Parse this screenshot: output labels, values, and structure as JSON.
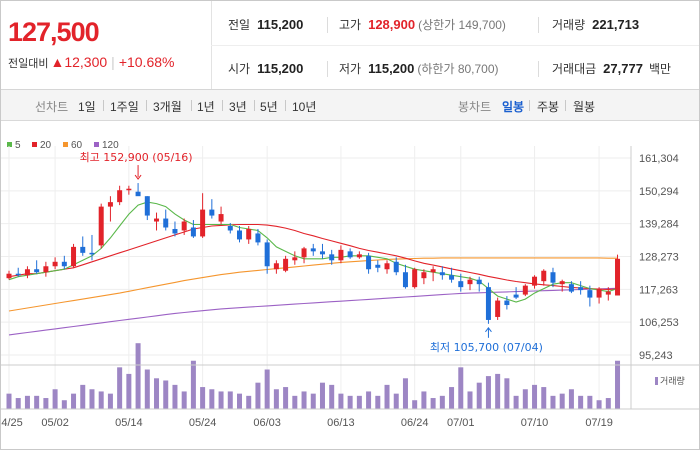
{
  "quote": {
    "price": "127,500",
    "change_label": "전일대비",
    "change": "▲12,300",
    "change_pct": "+10.68%",
    "prev_close": {
      "label": "전일",
      "value": "115,200"
    },
    "high": {
      "label": "고가",
      "value": "128,900",
      "extra": "(상한가 149,700)"
    },
    "volume": {
      "label": "거래량",
      "value": "221,713"
    },
    "open": {
      "label": "시가",
      "value": "115,200"
    },
    "low": {
      "label": "저가",
      "value": "115,200",
      "extra": "(하한가 80,700)"
    },
    "amount": {
      "label": "거래대금",
      "value": "27,777",
      "unit": "백만"
    }
  },
  "nav": {
    "line_chart_label": "선차트",
    "periods": [
      "1일",
      "1주일",
      "3개월",
      "1년",
      "3년",
      "5년",
      "10년"
    ],
    "candle_chart_label": "봉차트",
    "candle_periods": [
      "일봉",
      "주봉",
      "월봉"
    ],
    "selected_candle": "일봉"
  },
  "colors": {
    "up": "#e2232a",
    "down": "#1f6fd8",
    "ma5": "#5ab84a",
    "ma20": "#e2232a",
    "ma60": "#f5962e",
    "ma120": "#9c62c5",
    "volume": "#9d86c4"
  },
  "chart_data": {
    "type": "candlestick",
    "legend": [
      {
        "name": "5",
        "color": "#5ab84a"
      },
      {
        "name": "20",
        "color": "#e2232a"
      },
      {
        "name": "60",
        "color": "#f5962e"
      },
      {
        "name": "120",
        "color": "#9c62c5"
      }
    ],
    "y_ticks": [
      161304,
      150294,
      139284,
      128273,
      117263,
      106253,
      95243
    ],
    "y_tick_labels": [
      "161,304",
      "150,294",
      "139,284",
      "128,273",
      "117,263",
      "106,253",
      "95,243"
    ],
    "ylim": [
      95243,
      161304
    ],
    "x_tick_labels": [
      {
        "label": "04/25",
        "index": 0
      },
      {
        "label": "05/02",
        "index": 5
      },
      {
        "label": "05/14",
        "index": 13
      },
      {
        "label": "05/24",
        "index": 21
      },
      {
        "label": "06/03",
        "index": 28
      },
      {
        "label": "06/13",
        "index": 36
      },
      {
        "label": "06/24",
        "index": 44
      },
      {
        "label": "07/01",
        "index": 49
      },
      {
        "label": "07/10",
        "index": 57
      },
      {
        "label": "07/19",
        "index": 64
      }
    ],
    "annotations": [
      {
        "label": "최고 152,900 (05/16)",
        "index": 14,
        "value": 152900,
        "kind": "high"
      },
      {
        "label": "최저 105,700 (07/04)",
        "index": 52,
        "value": 105700,
        "kind": "low"
      }
    ],
    "volume_legend": "거래량",
    "candles": [
      [
        121000,
        123500,
        120500,
        122500
      ],
      [
        122500,
        124500,
        121500,
        122000
      ],
      [
        122000,
        125000,
        121000,
        124000
      ],
      [
        124000,
        127000,
        122500,
        123000
      ],
      [
        123000,
        126500,
        121500,
        125000
      ],
      [
        125000,
        128000,
        124000,
        126500
      ],
      [
        126500,
        128500,
        124000,
        125000
      ],
      [
        125000,
        132500,
        124500,
        131500
      ],
      [
        131500,
        135000,
        128500,
        129500
      ],
      [
        129500,
        135500,
        127000,
        129000
      ],
      [
        132000,
        146000,
        131000,
        145000
      ],
      [
        145000,
        148500,
        140000,
        146500
      ],
      [
        146500,
        152000,
        145500,
        150500
      ],
      [
        150500,
        152000,
        149000,
        151000
      ],
      [
        150000,
        152900,
        149000,
        148500
      ],
      [
        148500,
        148500,
        140500,
        142000
      ],
      [
        140000,
        143000,
        137000,
        141000
      ],
      [
        141000,
        144000,
        137000,
        138000
      ],
      [
        137500,
        140000,
        135000,
        136000
      ],
      [
        137000,
        141000,
        135500,
        140000
      ],
      [
        138000,
        140500,
        134500,
        135000
      ],
      [
        135000,
        149500,
        134500,
        144000
      ],
      [
        144000,
        147500,
        141000,
        142000
      ],
      [
        140000,
        145000,
        139000,
        142500
      ],
      [
        138500,
        139500,
        136000,
        137000
      ],
      [
        137000,
        138500,
        133000,
        134000
      ],
      [
        134000,
        138500,
        132500,
        137500
      ],
      [
        136000,
        137500,
        132000,
        133000
      ],
      [
        133000,
        134000,
        122500,
        125000
      ],
      [
        124000,
        127000,
        122500,
        126000
      ],
      [
        123500,
        128500,
        123000,
        127500
      ],
      [
        127000,
        130000,
        125500,
        128000
      ],
      [
        128000,
        131500,
        126000,
        131000
      ],
      [
        131000,
        132500,
        128500,
        130000
      ],
      [
        130000,
        132500,
        127500,
        129000
      ],
      [
        129000,
        130500,
        125500,
        127000
      ],
      [
        127000,
        132000,
        126000,
        130500
      ],
      [
        130000,
        131000,
        127500,
        128000
      ],
      [
        128000,
        130000,
        127500,
        129000
      ],
      [
        128500,
        129500,
        122500,
        124000
      ],
      [
        125500,
        127000,
        123000,
        124500
      ],
      [
        124000,
        127000,
        122500,
        126000
      ],
      [
        126500,
        128000,
        122000,
        123000
      ],
      [
        123000,
        125500,
        117500,
        118000
      ],
      [
        118000,
        124500,
        117500,
        124000
      ],
      [
        121000,
        124000,
        119000,
        123000
      ],
      [
        123000,
        125000,
        120000,
        124000
      ],
      [
        123000,
        125000,
        120500,
        122000
      ],
      [
        122000,
        124500,
        119500,
        120500
      ],
      [
        120000,
        122500,
        116500,
        118000
      ],
      [
        119000,
        121500,
        117000,
        120500
      ],
      [
        120500,
        121500,
        116500,
        119000
      ],
      [
        118000,
        119500,
        105700,
        107000
      ],
      [
        108000,
        114500,
        107000,
        113500
      ],
      [
        113500,
        115000,
        110500,
        112000
      ],
      [
        115500,
        118000,
        114000,
        114500
      ],
      [
        115500,
        119000,
        115000,
        118500
      ],
      [
        118500,
        122000,
        117500,
        121500
      ],
      [
        120000,
        124000,
        118500,
        123500
      ],
      [
        123000,
        124500,
        118000,
        119500
      ],
      [
        119000,
        120500,
        116500,
        120000
      ],
      [
        119000,
        120000,
        116000,
        116500
      ],
      [
        118000,
        120000,
        115500,
        117000
      ],
      [
        117000,
        118500,
        111500,
        114500
      ],
      [
        114500,
        118000,
        112500,
        117500
      ],
      [
        115500,
        118000,
        113500,
        116500
      ],
      [
        115200,
        128900,
        115200,
        127500
      ]
    ],
    "ma5": [
      120500,
      121500,
      122000,
      122500,
      123000,
      123500,
      124000,
      125500,
      127000,
      128500,
      131000,
      134500,
      138500,
      142500,
      145500,
      146500,
      146000,
      145000,
      142500,
      140500,
      139000,
      139000,
      139000,
      139000,
      139000,
      138000,
      137500,
      137000,
      134500,
      131500,
      130000,
      128500,
      127500,
      127500,
      127500,
      128000,
      128000,
      128500,
      128500,
      128500,
      128000,
      127500,
      126000,
      125000,
      124000,
      123500,
      123000,
      122500,
      122000,
      121500,
      121000,
      120000,
      117500,
      115000,
      114000,
      113000,
      114000,
      116000,
      117500,
      119000,
      119500,
      119500,
      118500,
      117500,
      117000,
      116500,
      117500
    ],
    "ma20": [
      121500,
      122000,
      122500,
      122500,
      123000,
      123500,
      124000,
      124500,
      125500,
      126500,
      127500,
      128500,
      129500,
      130500,
      131500,
      132500,
      133500,
      134500,
      135500,
      136500,
      137500,
      138000,
      138500,
      138700,
      138900,
      139000,
      139000,
      139000,
      138800,
      138400,
      137800,
      137000,
      136000,
      135200,
      134300,
      133500,
      132700,
      131900,
      131000,
      130300,
      129700,
      129100,
      128500,
      127700,
      126800,
      126000,
      125400,
      124800,
      124100,
      123500,
      122900,
      122300,
      121600,
      121000,
      120400,
      119900,
      119500,
      119100,
      118800,
      118500,
      118200,
      117900,
      117700,
      117500,
      117300,
      117200,
      117400
    ],
    "ma60": [
      110000,
      110500,
      111000,
      111500,
      112000,
      112500,
      113000,
      113500,
      114000,
      114500,
      115000,
      115500,
      116000,
      116600,
      117200,
      117800,
      118400,
      119000,
      119600,
      120200,
      120700,
      121200,
      121700,
      122200,
      122600,
      123000,
      123300,
      123600,
      123900,
      124200,
      124500,
      124800,
      125100,
      125400,
      125700,
      126000,
      126300,
      126500,
      126700,
      126900,
      127100,
      127300,
      127400,
      127500,
      127600,
      127700,
      127700,
      127800,
      127800,
      127800,
      127800,
      127800,
      127800,
      127800,
      127800,
      127800,
      127800,
      127800,
      127800,
      127800,
      127800,
      127800,
      127800,
      127800,
      127800,
      127700,
      127700
    ],
    "ma120": [
      102000,
      102400,
      102800,
      103200,
      103600,
      104000,
      104400,
      104800,
      105200,
      105600,
      106000,
      106400,
      106800,
      107200,
      107600,
      108000,
      108400,
      108800,
      109200,
      109500,
      109800,
      110100,
      110400,
      110700,
      110900,
      111100,
      111300,
      111500,
      111700,
      111900,
      112100,
      112300,
      112500,
      112700,
      112900,
      113100,
      113300,
      113500,
      113700,
      113900,
      114100,
      114300,
      114500,
      114700,
      114900,
      115100,
      115300,
      115500,
      115700,
      115900,
      116000,
      116100,
      116200,
      116300,
      116400,
      116500,
      116600,
      116700,
      116800,
      116900,
      117000,
      117100,
      117200,
      117300,
      117400,
      117500,
      117600
    ],
    "volume": [
      7,
      5,
      6,
      6,
      5,
      9,
      4,
      7,
      11,
      9,
      8,
      7,
      19,
      16,
      30,
      18,
      14,
      13,
      11,
      8,
      22,
      10,
      9,
      8,
      8,
      7,
      6,
      12,
      18,
      9,
      10,
      6,
      8,
      7,
      12,
      11,
      7,
      6,
      6,
      8,
      6,
      11,
      7,
      14,
      4,
      8,
      5,
      6,
      10,
      19,
      8,
      12,
      15,
      16,
      14,
      6,
      9,
      11,
      10,
      6,
      7,
      9,
      6,
      6,
      4,
      5,
      22
    ]
  }
}
